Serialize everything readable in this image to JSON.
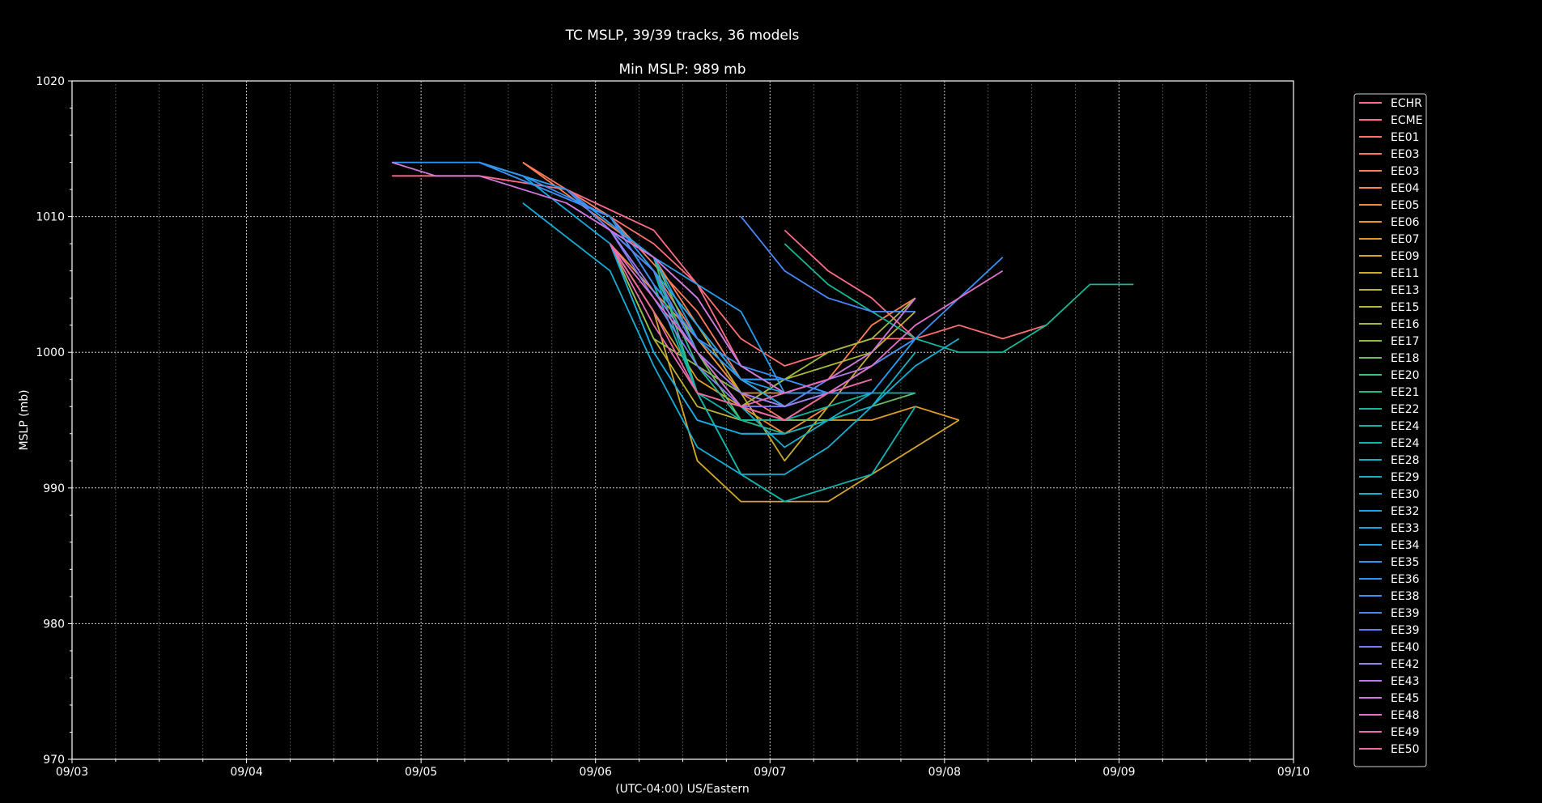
{
  "chart_data": {
    "type": "line",
    "title": "TC MSLP, 39/39 tracks, 36 models",
    "subtitle": "Min MSLP: 989 mb",
    "xlabel": "(UTC-04:00) US/Eastern",
    "ylabel": "MSLP (mb)",
    "xlim": [
      "09/03 00:00",
      "09/10 00:00"
    ],
    "ylim": [
      970,
      1020
    ],
    "x_ticks": [
      "09/03",
      "09/04",
      "09/05",
      "09/06",
      "09/07",
      "09/08",
      "09/09",
      "09/10"
    ],
    "y_ticks": [
      970,
      980,
      990,
      1000,
      1010,
      1020
    ],
    "grid": true,
    "legend_position": "right",
    "series": [
      {
        "name": "ECHR",
        "color": "#ff6b8a",
        "x": [
          "09/07 02:00",
          "09/07 08:00",
          "09/07 14:00",
          "09/07 20:00"
        ],
        "y": [
          1009,
          1006,
          1004,
          1001
        ]
      },
      {
        "name": "ECME",
        "color": "#ff6b8a",
        "x": [
          "09/04 20:00",
          "09/05 08:00",
          "09/05 20:00",
          "09/06 08:00",
          "09/06 14:00",
          "09/06 20:00",
          "09/07 02:00",
          "09/07 08:00"
        ],
        "y": [
          1013,
          1013,
          1012,
          1009,
          1005,
          999,
          997,
          998
        ]
      },
      {
        "name": "EE01",
        "color": "#ff7070",
        "x": [
          "09/05 20:00",
          "09/06 02:00",
          "09/06 08:00",
          "09/06 14:00",
          "09/06 20:00",
          "09/07 02:00",
          "09/07 08:00",
          "09/07 14:00",
          "09/07 20:00",
          "09/08 02:00",
          "09/08 08:00",
          "09/08 14:00"
        ],
        "y": [
          1012,
          1010,
          1008,
          1005,
          1001,
          999,
          1000,
          1001,
          1001,
          1002,
          1001,
          1002
        ]
      },
      {
        "name": "EE03",
        "color": "#ff7468",
        "x": [
          "09/05 20:00",
          "09/06 08:00",
          "09/06 14:00",
          "09/06 20:00",
          "09/07 02:00",
          "09/07 08:00",
          "09/07 14:00",
          "09/07 20:00"
        ],
        "y": [
          1012,
          1006,
          1001,
          997,
          995,
          997,
          999,
          1001
        ]
      },
      {
        "name": "EE03",
        "color": "#ff7a5e",
        "x": [
          "09/05 14:00",
          "09/06 02:00",
          "09/06 14:00",
          "09/06 20:00",
          "09/07 02:00",
          "09/07 08:00"
        ],
        "y": [
          1014,
          1010,
          1003,
          998,
          996,
          997
        ]
      },
      {
        "name": "EE04",
        "color": "#ff8050",
        "x": [
          "09/05 14:00",
          "09/06 08:00",
          "09/06 14:00",
          "09/06 20:00",
          "09/07 02:00",
          "09/07 08:00",
          "09/07 14:00",
          "09/07 20:00"
        ],
        "y": [
          1014,
          1007,
          1002,
          998,
          996,
          998,
          1002,
          1004
        ]
      },
      {
        "name": "EE05",
        "color": "#f58a3c",
        "x": [
          "09/05 20:00",
          "09/06 08:00",
          "09/06 14:00",
          "09/06 20:00",
          "09/07 02:00",
          "09/07 08:00"
        ],
        "y": [
          1012,
          1006,
          1000,
          996,
          994,
          996
        ]
      },
      {
        "name": "EE06",
        "color": "#ee9030",
        "x": [
          "09/06 02:00",
          "09/06 14:00",
          "09/06 20:00",
          "09/07 02:00",
          "09/07 08:00"
        ],
        "y": [
          1008,
          1001,
          997,
          997,
          997
        ]
      },
      {
        "name": "EE07",
        "color": "#e09b2a",
        "x": [
          "09/06 02:00",
          "09/06 14:00",
          "09/06 20:00",
          "09/07 02:00",
          "09/07 08:00",
          "09/07 14:00",
          "09/07 20:00",
          "09/08 02:00"
        ],
        "y": [
          1008,
          998,
          996,
          995,
          995,
          995,
          996,
          995
        ]
      },
      {
        "name": "EE09",
        "color": "#d4a62a",
        "x": [
          "09/06 02:00",
          "09/06 08:00",
          "09/06 14:00",
          "09/06 20:00",
          "09/07 02:00",
          "09/07 08:00",
          "09/07 14:00",
          "09/08 02:00"
        ],
        "y": [
          1008,
          1003,
          992,
          989,
          989,
          989,
          991,
          995
        ]
      },
      {
        "name": "EE11",
        "color": "#c8ae2a",
        "x": [
          "09/06 08:00",
          "09/06 14:00",
          "09/06 20:00",
          "09/07 02:00",
          "09/07 08:00",
          "09/07 14:00",
          "09/07 20:00"
        ],
        "y": [
          1006,
          1002,
          997,
          992,
          996,
          1000,
          1003
        ]
      },
      {
        "name": "EE13",
        "color": "#bcb432",
        "x": [
          "09/06 02:00",
          "09/06 08:00",
          "09/06 14:00",
          "09/06 20:00",
          "09/07 02:00",
          "09/07 08:00"
        ],
        "y": [
          1008,
          1001,
          996,
          995,
          995,
          995
        ]
      },
      {
        "name": "EE15",
        "color": "#b0b83c",
        "x": [
          "09/06 08:00",
          "09/06 14:00",
          "09/06 20:00",
          "09/07 02:00",
          "09/07 08:00",
          "09/07 14:00"
        ],
        "y": [
          1006,
          1002,
          998,
          998,
          999,
          1000
        ]
      },
      {
        "name": "EE16",
        "color": "#a2bc40",
        "x": [
          "09/06 08:00",
          "09/06 14:00",
          "09/06 20:00",
          "09/07 02:00",
          "09/07 08:00",
          "09/07 14:00",
          "09/07 20:00"
        ],
        "y": [
          1006,
          999,
          996,
          998,
          1000,
          1001,
          1004
        ]
      },
      {
        "name": "EE17",
        "color": "#8cbf48",
        "x": [
          "09/06 02:00",
          "09/06 08:00",
          "09/06 14:00",
          "09/06 20:00",
          "09/07 02:00"
        ],
        "y": [
          1008,
          1001,
          999,
          997,
          996
        ]
      },
      {
        "name": "EE18",
        "color": "#6cc060",
        "x": [
          "09/06 08:00",
          "09/06 14:00",
          "09/06 20:00",
          "09/07 02:00",
          "09/07 08:00",
          "09/07 14:00",
          "09/07 20:00"
        ],
        "y": [
          1007,
          1000,
          995,
          995,
          995,
          996,
          997
        ]
      },
      {
        "name": "EE20",
        "color": "#44bf78",
        "x": [
          "09/06 08:00",
          "09/06 14:00",
          "09/06 20:00",
          "09/07 02:00"
        ],
        "y": [
          1007,
          997,
          991,
          989
        ]
      },
      {
        "name": "EE21",
        "color": "#26bb8a",
        "x": [
          "09/06 08:00",
          "09/06 14:00",
          "09/06 20:00",
          "09/07 02:00",
          "09/07 08:00"
        ],
        "y": [
          1006,
          999,
          995,
          994,
          995
        ]
      },
      {
        "name": "EE22",
        "color": "#16b898",
        "x": [
          "09/07 02:00",
          "09/07 08:00",
          "09/07 14:00",
          "09/07 20:00",
          "09/08 02:00",
          "09/08 08:00",
          "09/08 14:00",
          "09/08 20:00",
          "09/09 02:00"
        ],
        "y": [
          1008,
          1005,
          1003,
          1001,
          1000,
          1000,
          1002,
          1005,
          1005
        ]
      },
      {
        "name": "EE24",
        "color": "#10b6a4",
        "x": [
          "09/06 08:00",
          "09/06 14:00",
          "09/06 20:00",
          "09/07 02:00",
          "09/07 08:00",
          "09/07 14:00",
          "09/07 20:00"
        ],
        "y": [
          1006,
          997,
          995,
          995,
          996,
          997,
          997
        ]
      },
      {
        "name": "EE24",
        "color": "#10b4b0",
        "x": [
          "09/06 08:00",
          "09/06 14:00",
          "09/06 20:00",
          "09/07 02:00",
          "09/07 08:00",
          "09/07 14:00",
          "09/07 20:00"
        ],
        "y": [
          1005,
          997,
          991,
          989,
          990,
          991,
          996
        ]
      },
      {
        "name": "EE28",
        "color": "#12b2be",
        "x": [
          "09/06 02:00",
          "09/06 08:00",
          "09/06 14:00",
          "09/06 20:00",
          "09/07 02:00",
          "09/07 08:00",
          "09/07 14:00",
          "09/07 20:00"
        ],
        "y": [
          1008,
          1000,
          995,
          994,
          994,
          995,
          996,
          1000
        ]
      },
      {
        "name": "EE29",
        "color": "#14b0ca",
        "x": [
          "09/05 20:00",
          "09/06 08:00",
          "09/06 14:00",
          "09/06 20:00",
          "09/07 02:00",
          "09/07 08:00",
          "09/07 14:00"
        ],
        "y": [
          1012,
          1006,
          1000,
          996,
          993,
          995,
          997
        ]
      },
      {
        "name": "EE30",
        "color": "#16aed6",
        "x": [
          "09/05 14:00",
          "09/06 02:00",
          "09/06 08:00",
          "09/06 14:00",
          "09/06 20:00",
          "09/07 02:00",
          "09/07 08:00",
          "09/07 14:00",
          "09/07 20:00",
          "09/08 02:00"
        ],
        "y": [
          1011,
          1006,
          999,
          993,
          991,
          991,
          993,
          996,
          999,
          1001
        ]
      },
      {
        "name": "EE32",
        "color": "#18aadf",
        "x": [
          "09/05 08:00",
          "09/05 14:00",
          "09/06 02:00",
          "09/06 08:00",
          "09/06 14:00",
          "09/06 20:00",
          "09/07 02:00"
        ],
        "y": [
          1014,
          1013,
          1008,
          1000,
          995,
          994,
          994
        ]
      },
      {
        "name": "EE33",
        "color": "#1ca6e6",
        "x": [
          "09/05 08:00",
          "09/05 20:00",
          "09/06 08:00",
          "09/06 14:00",
          "09/06 20:00",
          "09/07 02:00",
          "09/07 08:00",
          "09/07 14:00"
        ],
        "y": [
          1014,
          1012,
          1007,
          1001,
          998,
          997,
          997,
          997
        ]
      },
      {
        "name": "EE34",
        "color": "#22a2ec",
        "x": [
          "09/05 08:00",
          "09/06 02:00",
          "09/06 08:00",
          "09/06 14:00",
          "09/06 20:00",
          "09/07 02:00"
        ],
        "y": [
          1014,
          1010,
          1006,
          1002,
          998,
          996
        ]
      },
      {
        "name": "EE35",
        "color": "#289df0",
        "x": [
          "09/05 08:00",
          "09/05 20:00",
          "09/06 08:00",
          "09/06 14:00",
          "09/06 20:00",
          "09/07 02:00",
          "09/07 08:00",
          "09/07 14:00",
          "09/07 20:00"
        ],
        "y": [
          1014,
          1012,
          1007,
          1005,
          1003,
          997,
          997,
          997,
          1001
        ]
      },
      {
        "name": "EE36",
        "color": "#3096f2",
        "x": [
          "09/04 20:00",
          "09/05 08:00",
          "09/05 14:00",
          "09/06 02:00",
          "09/06 08:00",
          "09/06 14:00",
          "09/06 20:00",
          "09/07 02:00",
          "09/07 08:00",
          "09/07 14:00"
        ],
        "y": [
          1014,
          1014,
          1013,
          1010,
          1005,
          1001,
          998,
          998,
          997,
          997
        ]
      },
      {
        "name": "EE38",
        "color": "#3a90f4",
        "x": [
          "09/05 08:00",
          "09/06 02:00",
          "09/06 08:00",
          "09/06 14:00",
          "09/06 20:00",
          "09/07 02:00",
          "09/07 08:00",
          "09/07 14:00",
          "09/07 20:00",
          "09/08 02:00",
          "09/08 08:00"
        ],
        "y": [
          1014,
          1010,
          1005,
          1001,
          999,
          998,
          997,
          999,
          1001,
          1004,
          1007
        ]
      },
      {
        "name": "EE39",
        "color": "#4a88f6",
        "x": [
          "09/06 20:00",
          "09/07 02:00",
          "09/07 08:00",
          "09/07 14:00",
          "09/07 20:00"
        ],
        "y": [
          1010,
          1006,
          1004,
          1003,
          1003
        ]
      },
      {
        "name": "EE39",
        "color": "#5c80f6",
        "x": [
          "09/05 20:00",
          "09/06 08:00",
          "09/06 14:00",
          "09/06 20:00",
          "09/07 02:00",
          "09/07 08:00"
        ],
        "y": [
          1012,
          1006,
          1000,
          997,
          996,
          998
        ]
      },
      {
        "name": "EE40",
        "color": "#7c7cf4",
        "x": [
          "09/06 02:00",
          "09/06 08:00",
          "09/06 14:00",
          "09/06 20:00",
          "09/07 02:00",
          "09/07 08:00"
        ],
        "y": [
          1009,
          1004,
          999,
          996,
          996,
          997
        ]
      },
      {
        "name": "EE42",
        "color": "#9c80f0",
        "x": [
          "09/06 02:00",
          "09/06 14:00",
          "09/06 20:00",
          "09/07 02:00",
          "09/07 08:00",
          "09/07 14:00"
        ],
        "y": [
          1009,
          1000,
          997,
          996,
          997,
          998
        ]
      },
      {
        "name": "EE43",
        "color": "#b87ce8",
        "x": [
          "09/05 20:00",
          "09/06 08:00",
          "09/06 14:00",
          "09/06 20:00",
          "09/07 02:00",
          "09/07 08:00",
          "09/07 14:00"
        ],
        "y": [
          1011,
          1007,
          1004,
          999,
          997,
          998,
          999
        ]
      },
      {
        "name": "EE45",
        "color": "#d078de",
        "x": [
          "09/04 20:00",
          "09/05 02:00",
          "09/05 08:00",
          "09/05 20:00",
          "09/06 08:00",
          "09/06 14:00",
          "09/06 20:00",
          "09/07 02:00",
          "09/07 08:00",
          "09/07 14:00",
          "09/07 20:00"
        ],
        "y": [
          1014,
          1013,
          1013,
          1011,
          1007,
          1004,
          999,
          997,
          998,
          1000,
          1004
        ]
      },
      {
        "name": "EE48",
        "color": "#e070c8",
        "x": [
          "09/06 02:00",
          "09/06 14:00",
          "09/06 20:00",
          "09/07 02:00",
          "09/07 08:00",
          "09/07 14:00",
          "09/07 20:00",
          "09/08 02:00",
          "09/08 08:00"
        ],
        "y": [
          1008,
          1000,
          996,
          995,
          997,
          999,
          1002,
          1004,
          1006
        ]
      },
      {
        "name": "EE49",
        "color": "#ea6cb4",
        "x": [
          "09/06 02:00",
          "09/06 08:00",
          "09/06 14:00",
          "09/06 20:00",
          "09/07 02:00",
          "09/07 08:00"
        ],
        "y": [
          1008,
          1002,
          997,
          996,
          997,
          998
        ]
      },
      {
        "name": "EE50",
        "color": "#f06aa0",
        "x": [
          "09/06 02:00",
          "09/06 08:00",
          "09/06 14:00",
          "09/06 20:00",
          "09/07 02:00",
          "09/07 08:00",
          "09/07 14:00"
        ],
        "y": [
          1008,
          1003,
          997,
          996,
          995,
          997,
          998
        ]
      }
    ]
  }
}
